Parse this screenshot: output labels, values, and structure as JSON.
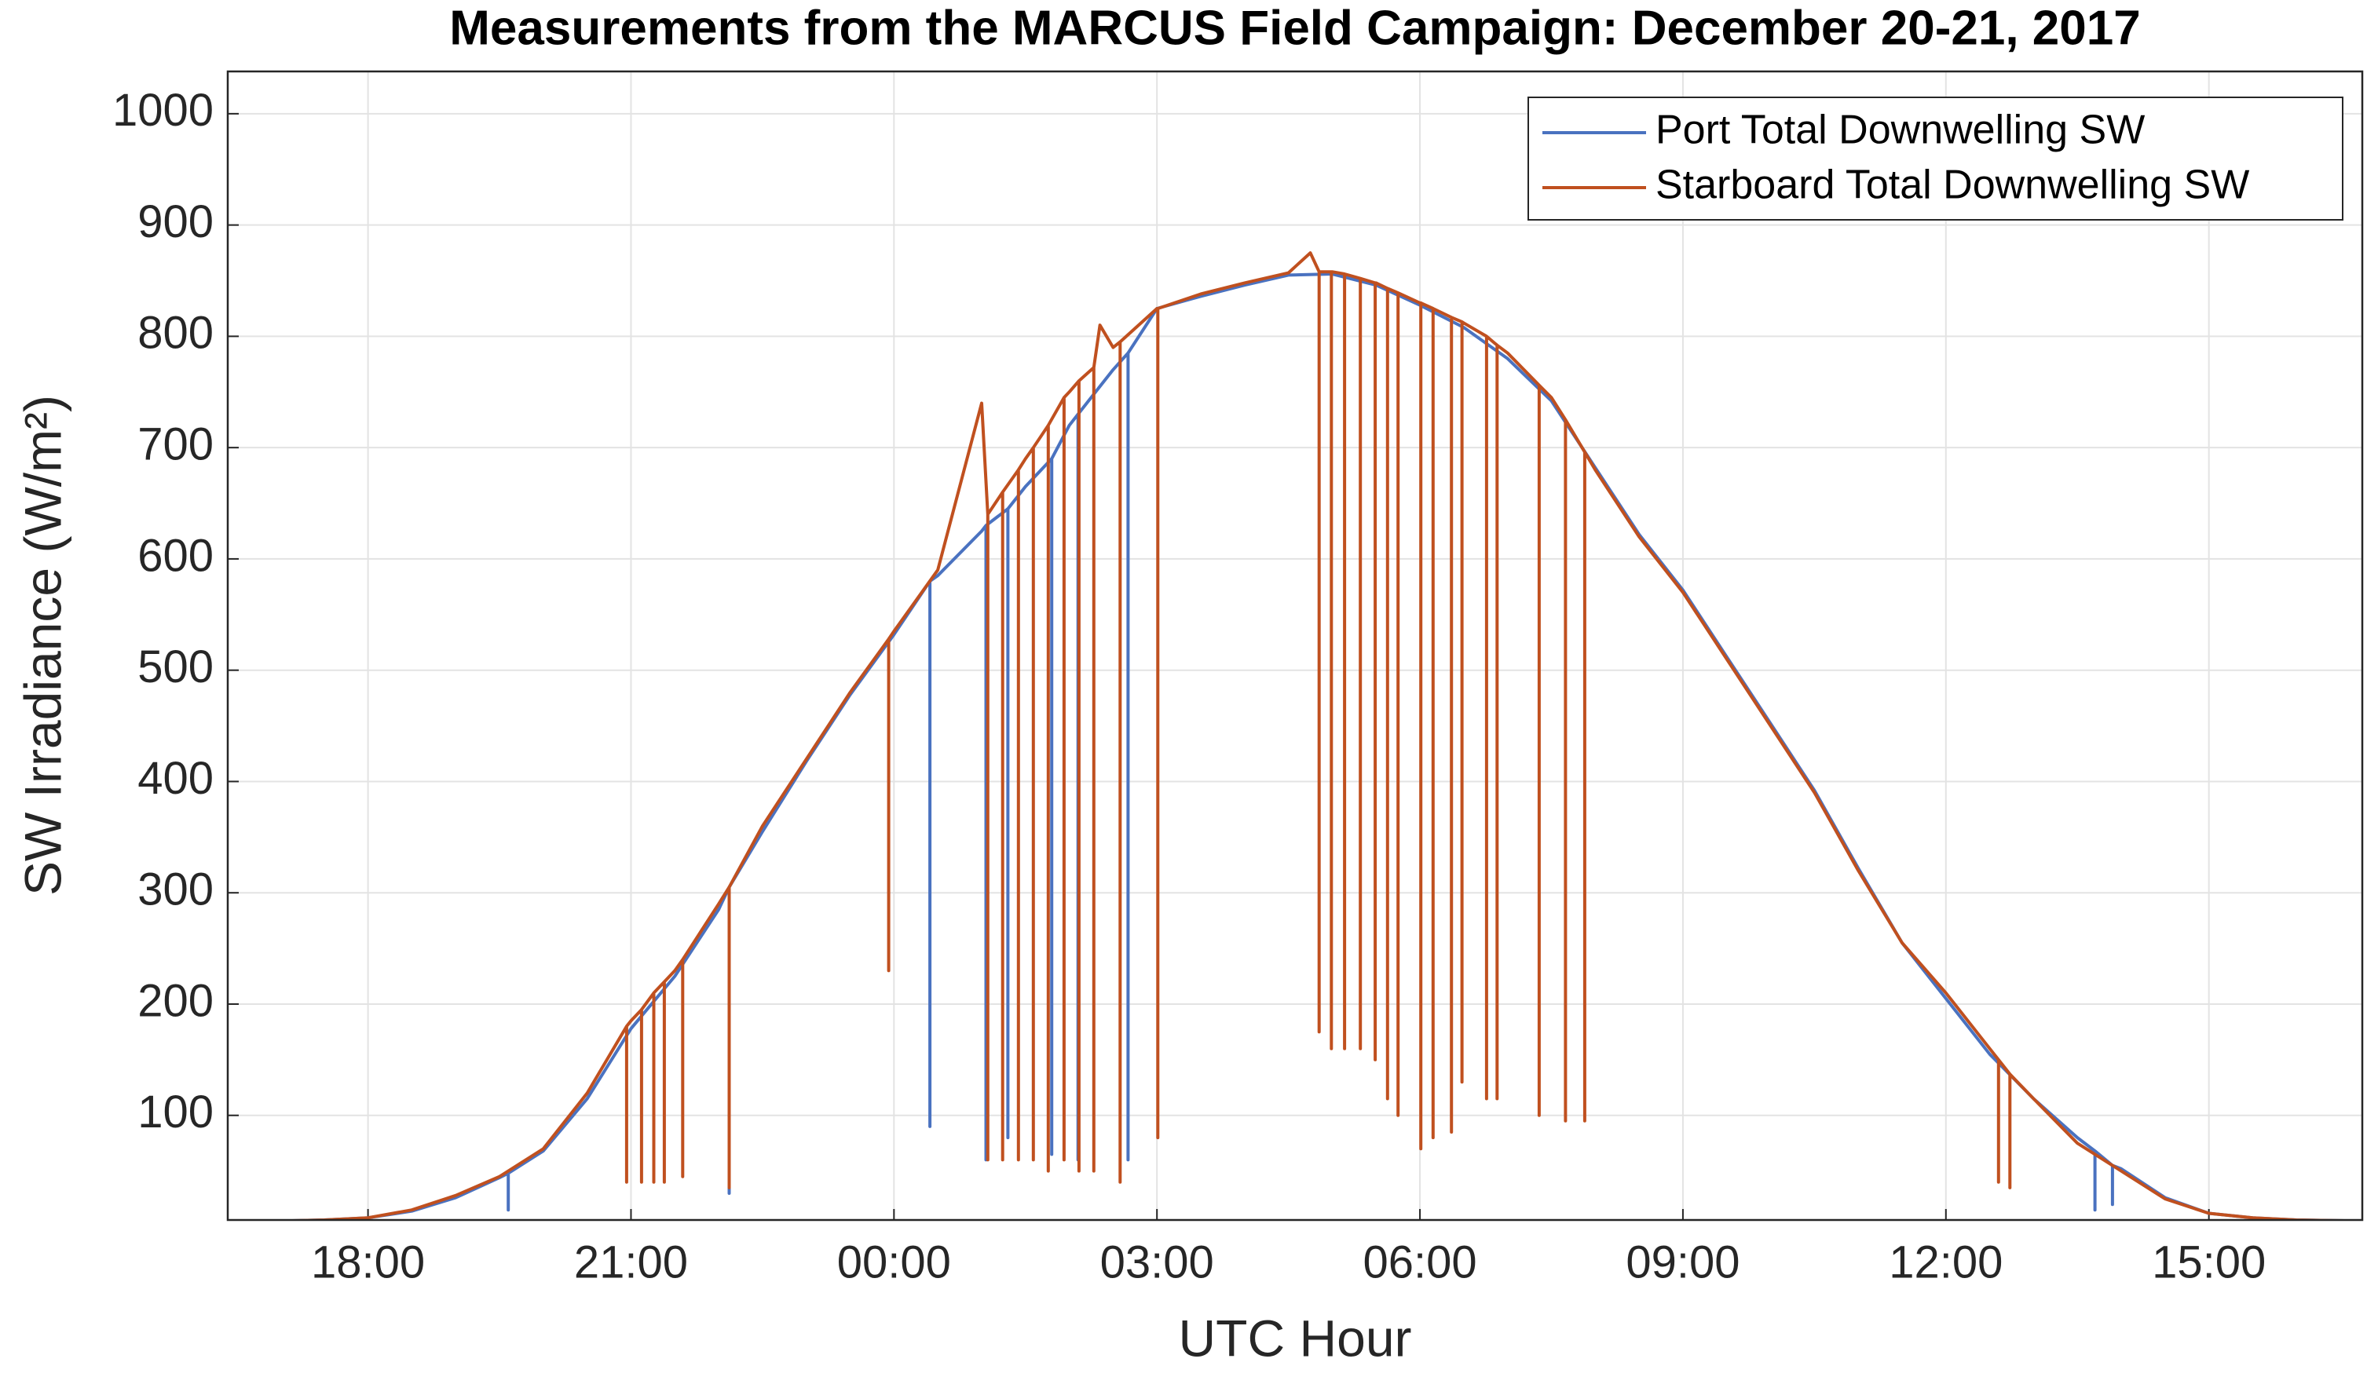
{
  "chart_data": {
    "type": "line",
    "title": "Measurements from the MARCUS Field Campaign: December 20-21, 2017",
    "x_label": "UTC Hour",
    "y_label": "SW Irradiance (W/m²)",
    "xlim": [
      16.4,
      40.75
    ],
    "ylim": [
      6,
      1038
    ],
    "xticks": [
      {
        "value": 18,
        "label": "18:00"
      },
      {
        "value": 21,
        "label": "21:00"
      },
      {
        "value": 24,
        "label": "00:00"
      },
      {
        "value": 27,
        "label": "03:00"
      },
      {
        "value": 30,
        "label": "06:00"
      },
      {
        "value": 33,
        "label": "09:00"
      },
      {
        "value": 36,
        "label": "12:00"
      },
      {
        "value": 39,
        "label": "15:00"
      }
    ],
    "yticks": [
      100,
      200,
      300,
      400,
      500,
      600,
      700,
      800,
      900,
      1000
    ],
    "grid": true,
    "legend": "top-right",
    "series": [
      {
        "name": "Port Total Downwelling SW",
        "color": "#4a72c0",
        "x": [
          16.4,
          17,
          17.5,
          18,
          18.5,
          19,
          19.5,
          19.6,
          19.6,
          19.6,
          20,
          20.5,
          21,
          21.5,
          22,
          22.12,
          22.12,
          22.12,
          22.5,
          23,
          23.5,
          24,
          24.41,
          24.41,
          24.41,
          24.5,
          25,
          25.05,
          25.05,
          25.05,
          25.3,
          25.3,
          25.3,
          25.5,
          25.8,
          25.8,
          25.8,
          26,
          26.1,
          26.1,
          26.1,
          26.5,
          26.67,
          26.67,
          26.67,
          27,
          27.5,
          28,
          28.5,
          29,
          29.5,
          30,
          30.5,
          31,
          31.5,
          32,
          32.5,
          33,
          33.5,
          34,
          34.5,
          35,
          35.5,
          36,
          36.5,
          37,
          37.5,
          37.7,
          37.7,
          37.7,
          37.9,
          37.9,
          37.9,
          38,
          38.5,
          39,
          39.5,
          40,
          40.75
        ],
        "values": [
          5,
          5,
          6,
          8,
          14,
          26,
          44,
          48,
          15,
          48,
          68,
          115,
          178,
          225,
          285,
          305,
          30,
          305,
          355,
          418,
          478,
          532,
          580,
          90,
          580,
          585,
          625,
          630,
          60,
          630,
          645,
          80,
          645,
          665,
          690,
          65,
          690,
          720,
          730,
          60,
          730,
          770,
          785,
          60,
          785,
          825,
          836,
          846,
          855,
          856,
          846,
          828,
          808,
          780,
          742,
          682,
          622,
          572,
          512,
          452,
          392,
          322,
          255,
          205,
          155,
          115,
          80,
          68,
          15,
          68,
          55,
          20,
          55,
          52,
          26,
          12,
          8,
          6,
          5
        ]
      },
      {
        "name": "Starboard Total Downwelling SW",
        "color": "#c0501f",
        "x": [
          16.4,
          17,
          17.5,
          18,
          18.5,
          19,
          19.5,
          20,
          20.5,
          20.95,
          20.95,
          20.95,
          21,
          21.12,
          21.12,
          21.12,
          21.26,
          21.26,
          21.26,
          21.38,
          21.38,
          21.38,
          21.5,
          21.59,
          21.59,
          21.59,
          22,
          22.12,
          22.12,
          22.12,
          22.5,
          23,
          23.5,
          23.94,
          23.94,
          23.94,
          24,
          24.5,
          25,
          25.07,
          25.07,
          25.07,
          25.24,
          25.24,
          25.24,
          25.42,
          25.42,
          25.42,
          25.5,
          25.59,
          25.59,
          25.59,
          25.76,
          25.76,
          25.76,
          25.94,
          25.94,
          25.94,
          26,
          26.11,
          26.11,
          26.11,
          26.28,
          26.28,
          26.28,
          26.35,
          26.5,
          26.58,
          26.58,
          26.58,
          27,
          27.01,
          27.01,
          27.01,
          27.5,
          28,
          28.5,
          28.75,
          28.85,
          28.85,
          28.85,
          28.99,
          28.99,
          28.99,
          29,
          29.14,
          29.14,
          29.14,
          29.32,
          29.32,
          29.32,
          29.49,
          29.49,
          29.49,
          29.5,
          29.63,
          29.63,
          29.63,
          29.75,
          29.75,
          29.75,
          30,
          30.01,
          30.01,
          30.01,
          30.15,
          30.15,
          30.15,
          30.36,
          30.36,
          30.36,
          30.48,
          30.48,
          30.48,
          30.5,
          30.76,
          30.76,
          30.76,
          30.88,
          30.88,
          30.88,
          31,
          31.36,
          31.36,
          31.36,
          31.5,
          31.66,
          31.66,
          31.66,
          31.88,
          31.88,
          31.88,
          32,
          32.5,
          33,
          33.5,
          34,
          34.5,
          35,
          35.5,
          36,
          36.5,
          36.6,
          36.6,
          36.6,
          36.73,
          36.73,
          36.73,
          37,
          37.5,
          38,
          38.5,
          39,
          39.5,
          40,
          40.75
        ],
        "values": [
          5,
          5,
          6,
          8,
          15,
          28,
          45,
          70,
          120,
          180,
          40,
          180,
          185,
          195,
          40,
          195,
          210,
          40,
          210,
          220,
          40,
          220,
          230,
          240,
          45,
          240,
          290,
          305,
          35,
          305,
          360,
          420,
          480,
          528,
          230,
          528,
          535,
          590,
          740,
          640,
          60,
          640,
          660,
          60,
          660,
          680,
          60,
          680,
          690,
          700,
          60,
          700,
          720,
          50,
          720,
          745,
          60,
          745,
          750,
          760,
          50,
          760,
          772,
          50,
          772,
          810,
          790,
          795,
          40,
          795,
          825,
          825,
          80,
          825,
          838,
          848,
          857,
          875,
          858,
          175,
          858,
          858,
          160,
          858,
          858,
          856,
          160,
          856,
          852,
          160,
          852,
          848,
          150,
          848,
          848,
          843,
          115,
          843,
          839,
          100,
          839,
          830,
          830,
          70,
          830,
          825,
          80,
          825,
          817,
          85,
          817,
          813,
          130,
          813,
          812,
          800,
          115,
          800,
          792,
          115,
          792,
          785,
          756,
          100,
          756,
          745,
          725,
          95,
          725,
          696,
          95,
          696,
          680,
          620,
          570,
          510,
          450,
          390,
          320,
          255,
          210,
          160,
          150,
          40,
          150,
          137,
          35,
          137,
          115,
          75,
          50,
          25,
          12,
          8,
          6,
          5
        ]
      }
    ]
  }
}
